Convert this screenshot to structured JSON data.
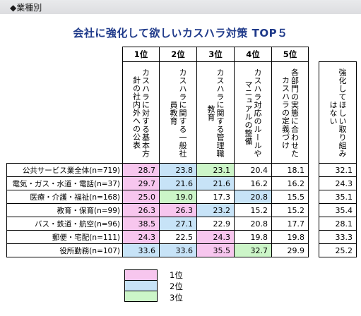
{
  "section": "◆業種別",
  "title": "会社に強化して欲しいカスハラ対策 TOP５",
  "colors": {
    "rank1": "#f7c6ee",
    "rank2": "#c7e3f7",
    "rank3": "#ccf5c8",
    "none": "#ffffff"
  },
  "chart_data": {
    "type": "table",
    "ranks": [
      "1位",
      "2位",
      "3位",
      "4位",
      "5位"
    ],
    "columns": [
      "カスハラに対する基本方針の社内外への公表",
      "カスハラに関する一般社員教育",
      "カスハラに関する管理職教育",
      "カスハラ対応のルールやマニュアルの整備",
      "各部門の実態に合わせたカスハラの定義づけ"
    ],
    "extra_column": "強化してほしい取り組みはない",
    "rows": [
      {
        "label": "公共サービス業全体(n=719)",
        "values": [
          28.7,
          23.8,
          23.1,
          20.4,
          18.1
        ],
        "extra": 32.1,
        "highlights": [
          1,
          2,
          3,
          0,
          0
        ]
      },
      {
        "label": "電気・ガス・水道・電話(n=37)",
        "values": [
          29.7,
          21.6,
          21.6,
          16.2,
          16.2
        ],
        "extra": 24.3,
        "highlights": [
          1,
          2,
          2,
          0,
          0
        ]
      },
      {
        "label": "医療・介護・福祉(n=168)",
        "values": [
          25.0,
          19.0,
          17.3,
          20.8,
          15.5
        ],
        "extra": 35.1,
        "highlights": [
          1,
          3,
          0,
          2,
          0
        ]
      },
      {
        "label": "教育・保育(n=99)",
        "values": [
          26.3,
          26.3,
          23.2,
          15.2,
          15.2
        ],
        "extra": 35.4,
        "highlights": [
          1,
          1,
          2,
          0,
          0
        ]
      },
      {
        "label": "バス・鉄道・航空(n=96)",
        "values": [
          38.5,
          27.1,
          22.9,
          20.8,
          17.7
        ],
        "extra": 28.1,
        "highlights": [
          1,
          2,
          0,
          0,
          0
        ]
      },
      {
        "label": "郵便・宅配(n=111)",
        "values": [
          24.3,
          22.5,
          24.3,
          19.8,
          19.8
        ],
        "extra": 33.3,
        "highlights": [
          1,
          0,
          1,
          0,
          0
        ]
      },
      {
        "label": "役所勤務(n=107)",
        "values": [
          33.6,
          33.6,
          35.5,
          32.7,
          29.9
        ],
        "extra": 25.2,
        "highlights": [
          2,
          2,
          1,
          3,
          0
        ]
      }
    ],
    "legend": [
      {
        "label": "1位",
        "color": "#f7c6ee"
      },
      {
        "label": "2位",
        "color": "#c7e3f7"
      },
      {
        "label": "3位",
        "color": "#ccf5c8"
      }
    ]
  }
}
